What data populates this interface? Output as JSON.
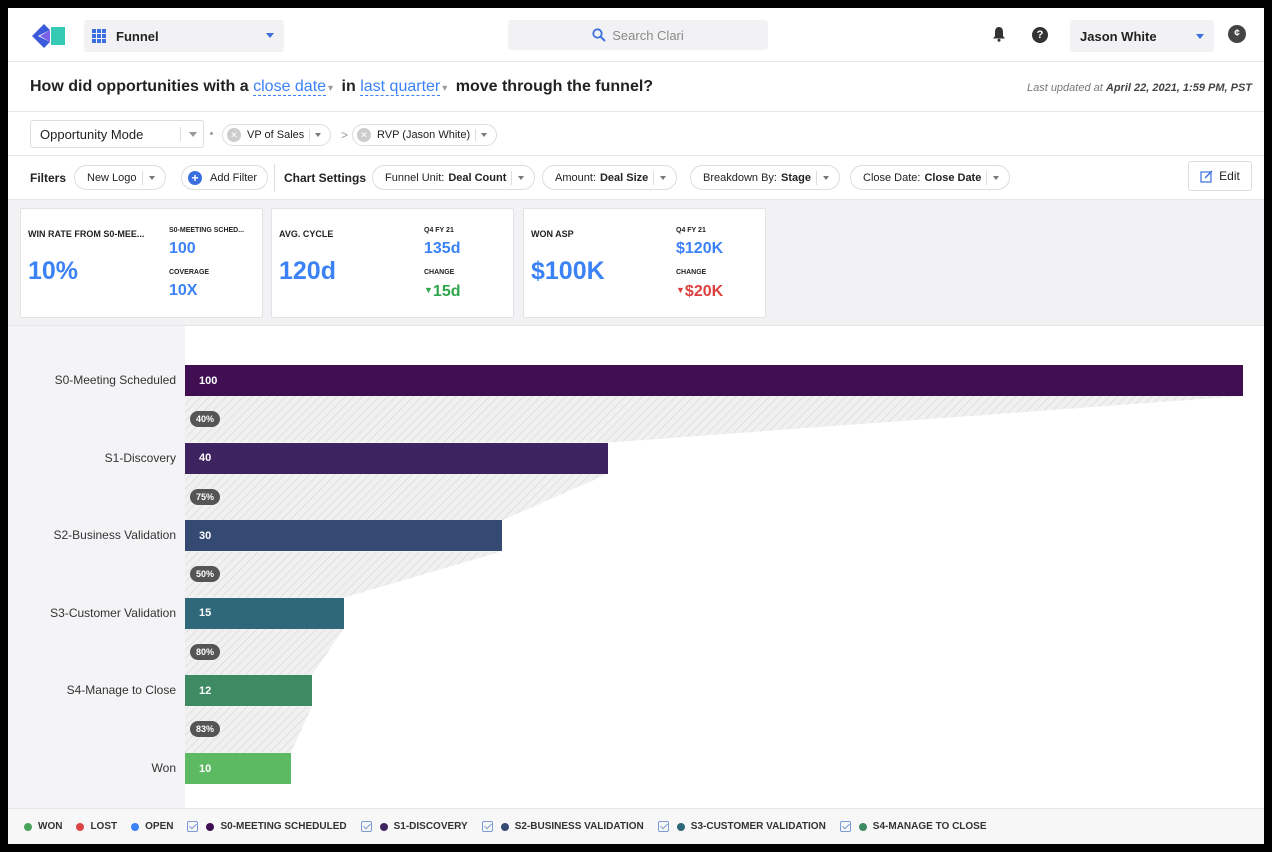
{
  "header": {
    "app_name": "Funnel",
    "search_placeholder": "Search Clari",
    "user_name": "Jason White"
  },
  "question": {
    "prefix": "How did opportunities with a",
    "date_field": "close date",
    "in_word": "in",
    "period": "last quarter",
    "suffix": "move through the funnel?",
    "updated_prefix": "Last updated at",
    "updated_value": "April 22, 2021, 1:59 PM, PST"
  },
  "mode": {
    "mode_select": "Opportunity Mode",
    "chip1": "VP of Sales",
    "chip2": "RVP (Jason White)"
  },
  "filters": {
    "filters_label": "Filters",
    "filter1": "New Logo",
    "add_filter": "Add Filter",
    "chart_settings_label": "Chart Settings",
    "funnel_unit_label": "Funnel Unit:",
    "funnel_unit_value": "Deal Count",
    "amount_label": "Amount:",
    "amount_value": "Deal Size",
    "breakdown_label": "Breakdown By:",
    "breakdown_value": "Stage",
    "close_date_label": "Close Date:",
    "close_date_value": "Close Date",
    "edit": "Edit"
  },
  "kpis": {
    "win_rate": {
      "label": "WIN RATE FROM S0-MEE...",
      "value": "10%",
      "sub_label": "S0-MEETING SCHED...",
      "sub_value": "100",
      "coverage_label": "COVERAGE",
      "coverage_value": "10X"
    },
    "avg_cycle": {
      "label": "AVG. CYCLE",
      "value": "120d",
      "period_label": "Q4 FY 21",
      "period_value": "135d",
      "change_label": "CHANGE",
      "change_value": "15d"
    },
    "won_asp": {
      "label": "WON ASP",
      "value": "$100K",
      "period_label": "Q4 FY 21",
      "period_value": "$120K",
      "change_label": "CHANGE",
      "change_value": "$20K"
    }
  },
  "chart_data": {
    "type": "bar",
    "orientation": "horizontal",
    "categories": [
      "S0-Meeting Scheduled",
      "S1-Discovery",
      "S2-Business Validation",
      "S3-Customer Validation",
      "S4-Manage to Close",
      "Won"
    ],
    "values": [
      100,
      40,
      30,
      15,
      12,
      10
    ],
    "conversion_rates": [
      "40%",
      "75%",
      "50%",
      "80%",
      "83%"
    ],
    "colors": [
      "#3f0f51",
      "#3d2460",
      "#344a72",
      "#2f6878",
      "#3e8a62",
      "#5cba62"
    ],
    "xlim": [
      0,
      100
    ]
  },
  "legend": {
    "items": [
      {
        "label": "WON",
        "color": "#4aa35a",
        "checkbox": false
      },
      {
        "label": "LOST",
        "color": "#dc4545",
        "checkbox": false
      },
      {
        "label": "OPEN",
        "color": "#3b82f6",
        "checkbox": false
      },
      {
        "label": "S0-MEETING SCHEDULED",
        "color": "#3f0f51",
        "checkbox": true
      },
      {
        "label": "S1-DISCOVERY",
        "color": "#3d2460",
        "checkbox": true
      },
      {
        "label": "S2-BUSINESS VALIDATION",
        "color": "#344a72",
        "checkbox": true
      },
      {
        "label": "S3-CUSTOMER VALIDATION",
        "color": "#2f6878",
        "checkbox": true
      },
      {
        "label": "S4-MANAGE TO CLOSE",
        "color": "#3e8a62",
        "checkbox": true
      }
    ]
  }
}
